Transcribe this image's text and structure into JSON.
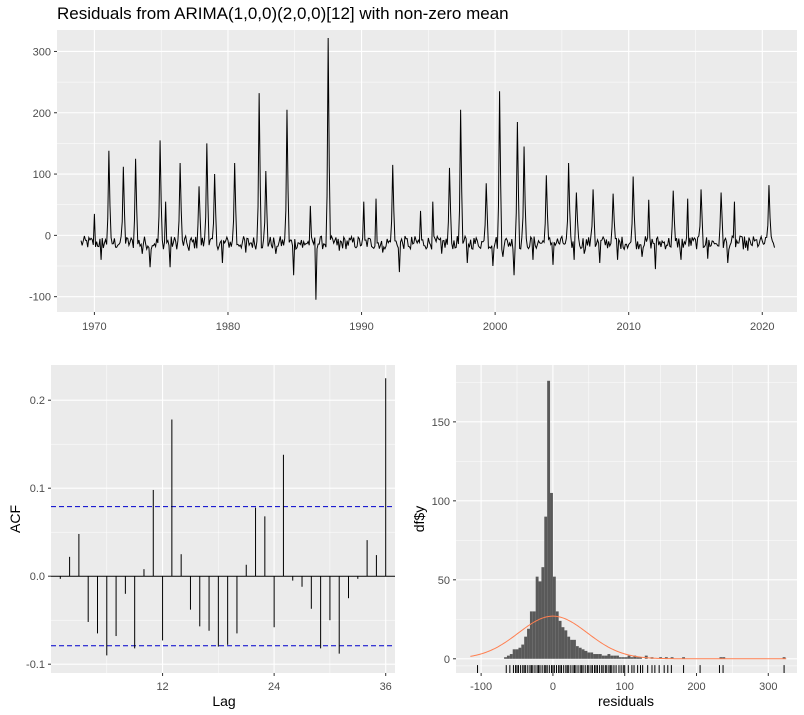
{
  "title": "Residuals from ARIMA(1,0,0)(2,0,0)[12] with non-zero mean",
  "colors": {
    "panel": "#ebebeb",
    "grid": "#ffffff",
    "line": "#000000",
    "ci": "#0000cc",
    "hist": "#595959",
    "density": "#ff7f50",
    "tick": "#4d4d4d"
  },
  "chart_data": [
    {
      "type": "line",
      "series": [
        {
          "x_start": 1969.0,
          "frequency": 12,
          "values": []
        }
      ],
      "xlim": [
        1967.2,
        2022.6
      ],
      "ylim": [
        -125,
        335
      ],
      "xticks": [
        1970,
        1980,
        1990,
        2000,
        2010,
        2020
      ],
      "xtick_labels": [
        "1970",
        "1980",
        "1990",
        "2000",
        "2010",
        "2020"
      ],
      "yticks": [
        -100,
        0,
        100,
        200,
        300
      ],
      "ytick_labels": [
        "-100",
        "0",
        "100",
        "200",
        "300"
      ],
      "peaks": [
        [
          1970.0,
          35
        ],
        [
          1970.5,
          -40
        ],
        [
          1971.1,
          138
        ],
        [
          1972.2,
          112
        ],
        [
          1973.1,
          125
        ],
        [
          1973.6,
          -30
        ],
        [
          1974.2,
          -52
        ],
        [
          1974.9,
          155
        ],
        [
          1975.3,
          55
        ],
        [
          1975.7,
          -52
        ],
        [
          1976.4,
          118
        ],
        [
          1977.1,
          -25
        ],
        [
          1977.8,
          80
        ],
        [
          1978.4,
          150
        ],
        [
          1979.0,
          100
        ],
        [
          1979.6,
          -45
        ],
        [
          1980.5,
          118
        ],
        [
          1981.3,
          -28
        ],
        [
          1982.3,
          232
        ],
        [
          1982.8,
          105
        ],
        [
          1983.6,
          -30
        ],
        [
          1984.4,
          205
        ],
        [
          1984.9,
          -65
        ],
        [
          1985.6,
          -20
        ],
        [
          1986.2,
          48
        ],
        [
          1986.6,
          -105
        ],
        [
          1987.5,
          322
        ],
        [
          1988.3,
          -25
        ],
        [
          1990.2,
          55
        ],
        [
          1991.1,
          60
        ],
        [
          1991.6,
          -28
        ],
        [
          1992.3,
          115
        ],
        [
          1992.8,
          -60
        ],
        [
          1993.7,
          -22
        ],
        [
          1994.4,
          40
        ],
        [
          1995.3,
          55
        ],
        [
          1996.0,
          -30
        ],
        [
          1996.6,
          110
        ],
        [
          1997.4,
          205
        ],
        [
          1997.9,
          -45
        ],
        [
          1999.3,
          85
        ],
        [
          1999.8,
          -50
        ],
        [
          2000.3,
          235
        ],
        [
          2000.6,
          -35
        ],
        [
          2001.4,
          -65
        ],
        [
          2001.7,
          185
        ],
        [
          2002.2,
          145
        ],
        [
          2002.8,
          -40
        ],
        [
          2003.8,
          98
        ],
        [
          2004.3,
          -48
        ],
        [
          2005.5,
          118
        ],
        [
          2005.9,
          -40
        ],
        [
          2006.1,
          70
        ],
        [
          2006.7,
          -30
        ],
        [
          2007.3,
          75
        ],
        [
          2007.8,
          -45
        ],
        [
          2008.8,
          68
        ],
        [
          2009.2,
          -40
        ],
        [
          2010.3,
          96
        ],
        [
          2011.0,
          -35
        ],
        [
          2011.5,
          58
        ],
        [
          2012.0,
          -55
        ],
        [
          2013.3,
          73
        ],
        [
          2013.9,
          -40
        ],
        [
          2014.4,
          60
        ],
        [
          2015.4,
          75
        ],
        [
          2015.9,
          -38
        ],
        [
          2016.9,
          70
        ],
        [
          2017.4,
          -45
        ],
        [
          2017.9,
          55
        ],
        [
          2018.9,
          -25
        ],
        [
          2020.5,
          82
        ],
        [
          2020.9,
          -20
        ]
      ]
    },
    {
      "type": "bar",
      "xlabel": "Lag",
      "ylabel": "ACF",
      "xlim": [
        0,
        37
      ],
      "ylim": [
        -0.11,
        0.24
      ],
      "xticks": [
        12,
        24,
        36
      ],
      "xtick_labels": [
        "12",
        "24",
        "36"
      ],
      "yticks": [
        -0.1,
        0.0,
        0.1,
        0.2
      ],
      "ytick_labels": [
        "-0.1",
        "0.0",
        "0.1",
        "0.2"
      ],
      "categories": [
        1,
        2,
        3,
        4,
        5,
        6,
        7,
        8,
        9,
        10,
        11,
        12,
        13,
        14,
        15,
        16,
        17,
        18,
        19,
        20,
        21,
        22,
        23,
        24,
        25,
        26,
        27,
        28,
        29,
        30,
        31,
        32,
        33,
        34,
        35,
        36
      ],
      "values": [
        -0.003,
        0.022,
        0.048,
        -0.052,
        -0.065,
        -0.09,
        -0.068,
        -0.02,
        -0.082,
        0.008,
        0.098,
        -0.073,
        0.178,
        0.025,
        -0.038,
        -0.057,
        -0.062,
        -0.08,
        -0.078,
        -0.065,
        0.013,
        0.078,
        0.068,
        -0.058,
        0.138,
        -0.005,
        -0.012,
        -0.037,
        -0.082,
        -0.05,
        -0.088,
        -0.025,
        -0.003,
        0.041,
        0.024,
        0.225
      ],
      "ci": 0.079
    },
    {
      "type": "bar",
      "xlabel": "residuals",
      "ylabel": "df$y",
      "xlim": [
        -135,
        340
      ],
      "ylim": [
        -9,
        186
      ],
      "xticks": [
        -100,
        0,
        100,
        200,
        300
      ],
      "xtick_labels": [
        "-100",
        "0",
        "100",
        "200",
        "300"
      ],
      "yticks": [
        0,
        50,
        100,
        150
      ],
      "ytick_labels": [
        "0",
        "50",
        "100",
        "150"
      ],
      "bin_width": 4,
      "bins": [
        [
          -68,
          1
        ],
        [
          -64,
          2
        ],
        [
          -60,
          3
        ],
        [
          -56,
          6
        ],
        [
          -52,
          6
        ],
        [
          -48,
          7
        ],
        [
          -44,
          9
        ],
        [
          -40,
          14
        ],
        [
          -36,
          19
        ],
        [
          -32,
          30
        ],
        [
          -28,
          30
        ],
        [
          -24,
          52
        ],
        [
          -20,
          49
        ],
        [
          -16,
          58
        ],
        [
          -12,
          90
        ],
        [
          -8,
          176
        ],
        [
          -4,
          105
        ],
        [
          0,
          52
        ],
        [
          4,
          30
        ],
        [
          8,
          24
        ],
        [
          12,
          20
        ],
        [
          16,
          18
        ],
        [
          20,
          14
        ],
        [
          24,
          12
        ],
        [
          28,
          12
        ],
        [
          32,
          8
        ],
        [
          36,
          7
        ],
        [
          40,
          6
        ],
        [
          44,
          5
        ],
        [
          48,
          4
        ],
        [
          52,
          4
        ],
        [
          56,
          3
        ],
        [
          60,
          3
        ],
        [
          64,
          3
        ],
        [
          68,
          2
        ],
        [
          72,
          2
        ],
        [
          76,
          3
        ],
        [
          80,
          2
        ],
        [
          84,
          2
        ],
        [
          88,
          2
        ],
        [
          92,
          1
        ],
        [
          96,
          1
        ],
        [
          100,
          1
        ],
        [
          104,
          2
        ],
        [
          108,
          1
        ],
        [
          112,
          2
        ],
        [
          116,
          1
        ],
        [
          120,
          1
        ],
        [
          128,
          2
        ],
        [
          136,
          1
        ],
        [
          148,
          1
        ],
        [
          156,
          1
        ],
        [
          164,
          1
        ],
        [
          180,
          1
        ],
        [
          232,
          1
        ],
        [
          236,
          1
        ],
        [
          320,
          1
        ]
      ],
      "density": {
        "mean": 0,
        "sd": 48,
        "peak": 27
      },
      "rug": [
        -105,
        -65,
        -60,
        -55,
        -52,
        -50,
        -48,
        -45,
        -42,
        -40,
        -38,
        -35,
        -32,
        -30,
        -28,
        -25,
        -22,
        -20,
        -18,
        -15,
        -12,
        -10,
        -8,
        -5,
        -2,
        0,
        2,
        5,
        8,
        10,
        12,
        15,
        18,
        20,
        22,
        25,
        28,
        30,
        32,
        35,
        38,
        40,
        42,
        45,
        48,
        50,
        53,
        55,
        58,
        60,
        62,
        65,
        68,
        70,
        73,
        75,
        78,
        80,
        82,
        85,
        88,
        92,
        95,
        98,
        100,
        105,
        110,
        113,
        118,
        122,
        125,
        132,
        138,
        142,
        148,
        155,
        160,
        165,
        182,
        205,
        232,
        237,
        322
      ]
    }
  ]
}
